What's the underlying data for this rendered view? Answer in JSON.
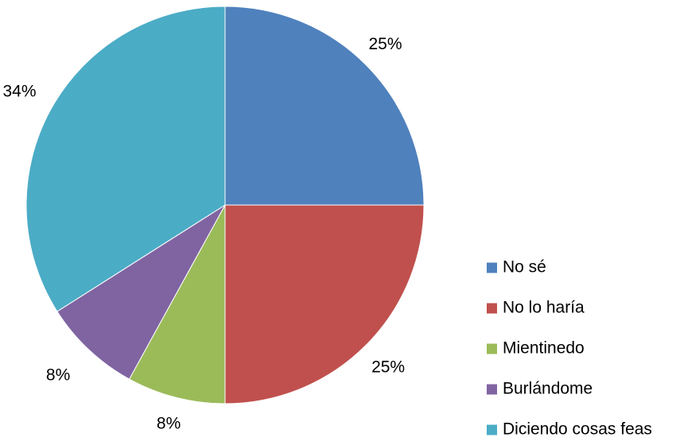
{
  "chart_data": {
    "type": "pie",
    "title": "",
    "categories": [
      "No sé",
      "No lo haría",
      "Mientinedo",
      "Burlándome",
      "Diciendo cosas feas"
    ],
    "values": [
      25,
      25,
      8,
      8,
      34
    ],
    "value_labels": [
      "25%",
      "25%",
      "8%",
      "8%",
      "34%"
    ],
    "colors": [
      "#4F81BD",
      "#C0504D",
      "#9BBB59",
      "#8064A2",
      "#4BACC6"
    ],
    "start": "12 o'clock",
    "direction": "clockwise",
    "legend_position": "right-bottom"
  }
}
